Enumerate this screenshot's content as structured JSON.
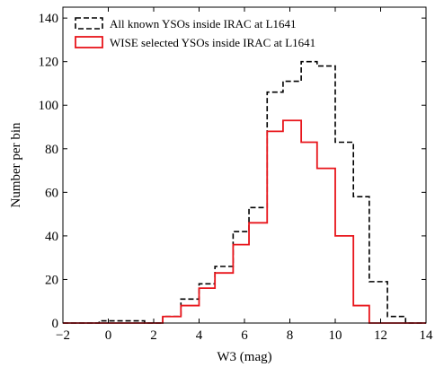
{
  "chart_data": {
    "type": "line",
    "step": true,
    "title": "",
    "xlabel": "W3 (mag)",
    "ylabel": "Number per bin",
    "xlim": [
      -2,
      14
    ],
    "ylim": [
      0,
      145
    ],
    "xticks": [
      -2,
      0,
      2,
      4,
      6,
      8,
      10,
      12,
      14
    ],
    "yticks": [
      0,
      20,
      40,
      60,
      80,
      100,
      120,
      140
    ],
    "grid": false,
    "legend_position": "top-left",
    "bin_edges": [
      -2.0,
      -1.2,
      -0.4,
      0.4,
      1.2,
      1.6,
      2.4,
      3.2,
      4.0,
      4.7,
      5.5,
      6.2,
      7.0,
      7.7,
      8.5,
      9.2,
      10.0,
      10.8,
      11.5,
      12.3,
      13.1,
      14.0
    ],
    "series": [
      {
        "name": "All known YSOs inside IRAC at L1641",
        "color": "#000000",
        "style": "dashed",
        "values": [
          0,
          0,
          1,
          1,
          1,
          0,
          3,
          11,
          18,
          26,
          42,
          53,
          106,
          111,
          120,
          118,
          83,
          58,
          19,
          3,
          0
        ]
      },
      {
        "name": "WISE selected YSOs inside IRAC at L1641",
        "color": "#e8151b",
        "style": "solid",
        "values": [
          0,
          0,
          0,
          0,
          0,
          0,
          3,
          8,
          16,
          23,
          36,
          46,
          88,
          93,
          83,
          71,
          40,
          8,
          0,
          0,
          0
        ]
      }
    ]
  }
}
